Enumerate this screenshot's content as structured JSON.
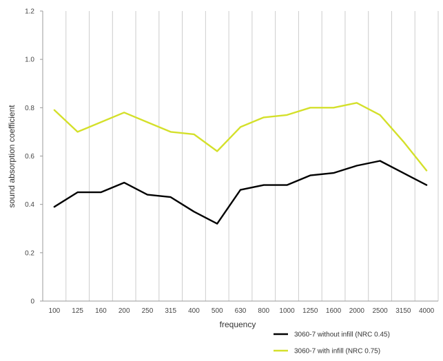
{
  "chart_data": {
    "type": "line",
    "title": "",
    "xlabel": "frequency",
    "ylabel": "sound absorption coefficient",
    "categories": [
      "100",
      "125",
      "160",
      "200",
      "250",
      "315",
      "400",
      "500",
      "630",
      "800",
      "1000",
      "1250",
      "1600",
      "2000",
      "2500",
      "3150",
      "4000"
    ],
    "y_ticks": [
      "0",
      "0.2",
      "0.4",
      "0.6",
      "0.8",
      "1.0",
      "1.2"
    ],
    "ylim": [
      0,
      1.2
    ],
    "grid": true,
    "legend_position": "bottom-right",
    "series": [
      {
        "name": "3060-7 without infill (NRC 0.45)",
        "color": "#000000",
        "values": [
          0.39,
          0.45,
          0.45,
          0.49,
          0.44,
          0.43,
          0.37,
          0.32,
          0.46,
          0.48,
          0.48,
          0.52,
          0.53,
          0.56,
          0.58,
          0.53,
          0.48
        ]
      },
      {
        "name": "3060-7 with infill (NRC 0.75)",
        "color": "#d4e02a",
        "values": [
          0.79,
          0.7,
          0.74,
          0.78,
          0.74,
          0.7,
          0.69,
          0.62,
          0.72,
          0.76,
          0.77,
          0.8,
          0.8,
          0.82,
          0.77,
          0.66,
          0.54
        ]
      }
    ]
  }
}
